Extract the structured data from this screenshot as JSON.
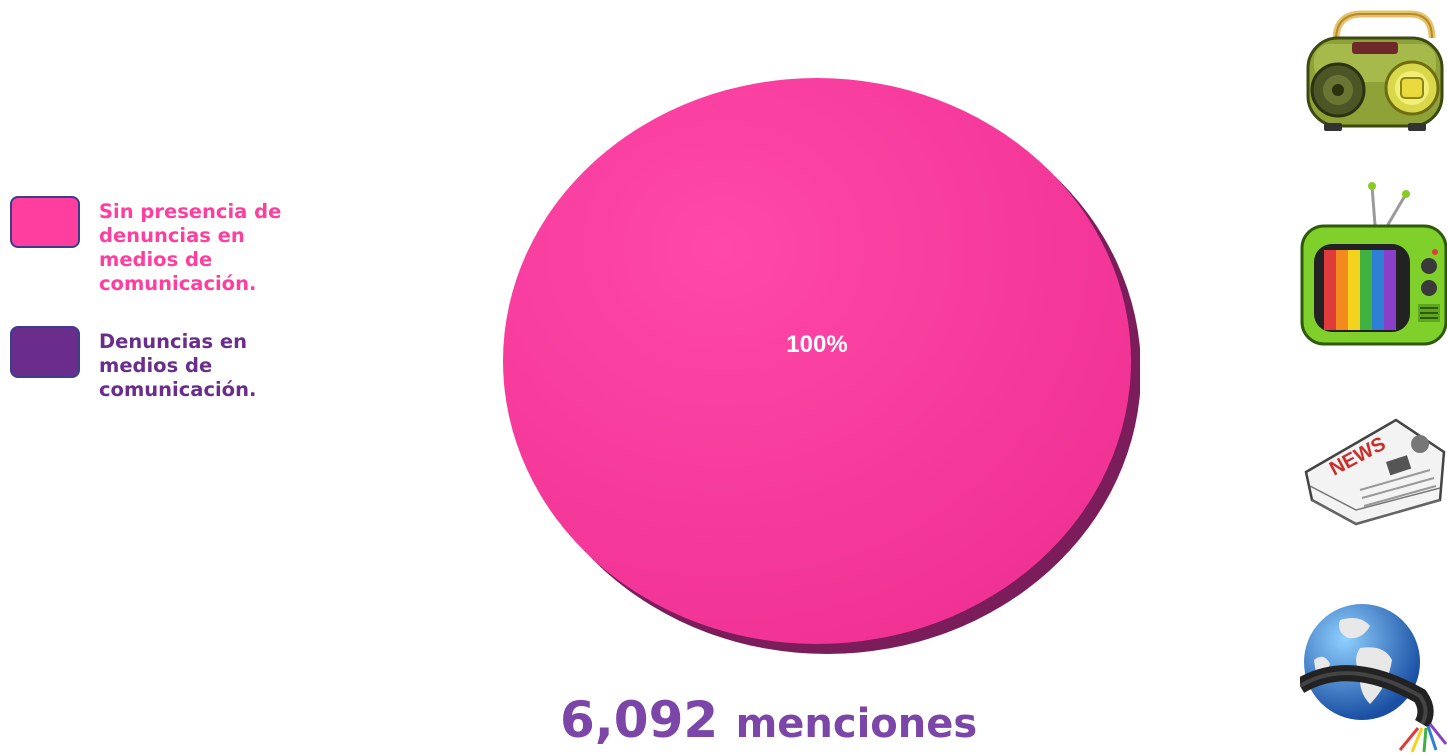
{
  "chart_data": {
    "type": "pie",
    "series": [
      {
        "name": "Sin presencia de denuncias en medios de comunicación.",
        "value": 100,
        "label": "100%",
        "color": "#ff3ea0"
      },
      {
        "name": "Denuncias en medios de comunicación.",
        "value": 0,
        "label": "",
        "color": "#6a2d8c"
      }
    ]
  },
  "legend": [
    {
      "label": "Sin presencia de denuncias en medios de comunicación.",
      "color": "#ff3ea0",
      "text_color": "#ff3ea0"
    },
    {
      "label": "Denuncias en medios de comunicación.",
      "color": "#6a2d8c",
      "text_color": "#6a2d8c"
    }
  ],
  "total": {
    "number": "6,092",
    "unit": "menciones"
  },
  "media_icons": [
    "radio-icon",
    "tv-icon",
    "newspaper-icon",
    "internet-globe-icon"
  ],
  "newspaper_text": "NEWS"
}
